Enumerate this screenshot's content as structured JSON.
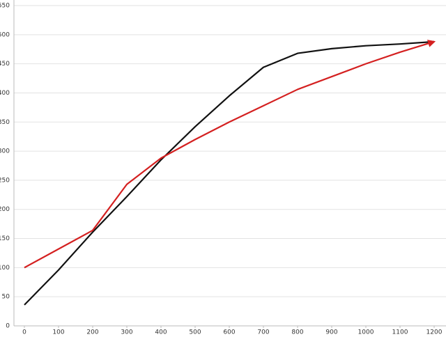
{
  "chart_data": {
    "type": "line",
    "x": [
      0,
      100,
      200,
      300,
      400,
      500,
      600,
      700,
      800,
      900,
      1000,
      1100,
      1200
    ],
    "series": [
      {
        "color": "#111111",
        "values": [
          36,
          96,
          161,
          222,
          285,
          342,
          395,
          444,
          468,
          476,
          481,
          484,
          488
        ]
      },
      {
        "color": "#d42020",
        "values": [
          100,
          132,
          164,
          243,
          288,
          320,
          350,
          378,
          406,
          428,
          450,
          470,
          488
        ]
      }
    ],
    "xlim": [
      0,
      1200
    ],
    "xticks": [
      0,
      100,
      200,
      300,
      400,
      500,
      600,
      700,
      800,
      900,
      1000,
      1100,
      1200
    ],
    "ylim": [
      0,
      550
    ],
    "yticks": [
      0,
      50,
      100,
      150,
      200,
      250,
      300,
      350,
      400,
      450,
      500,
      550
    ],
    "grid": true
  }
}
